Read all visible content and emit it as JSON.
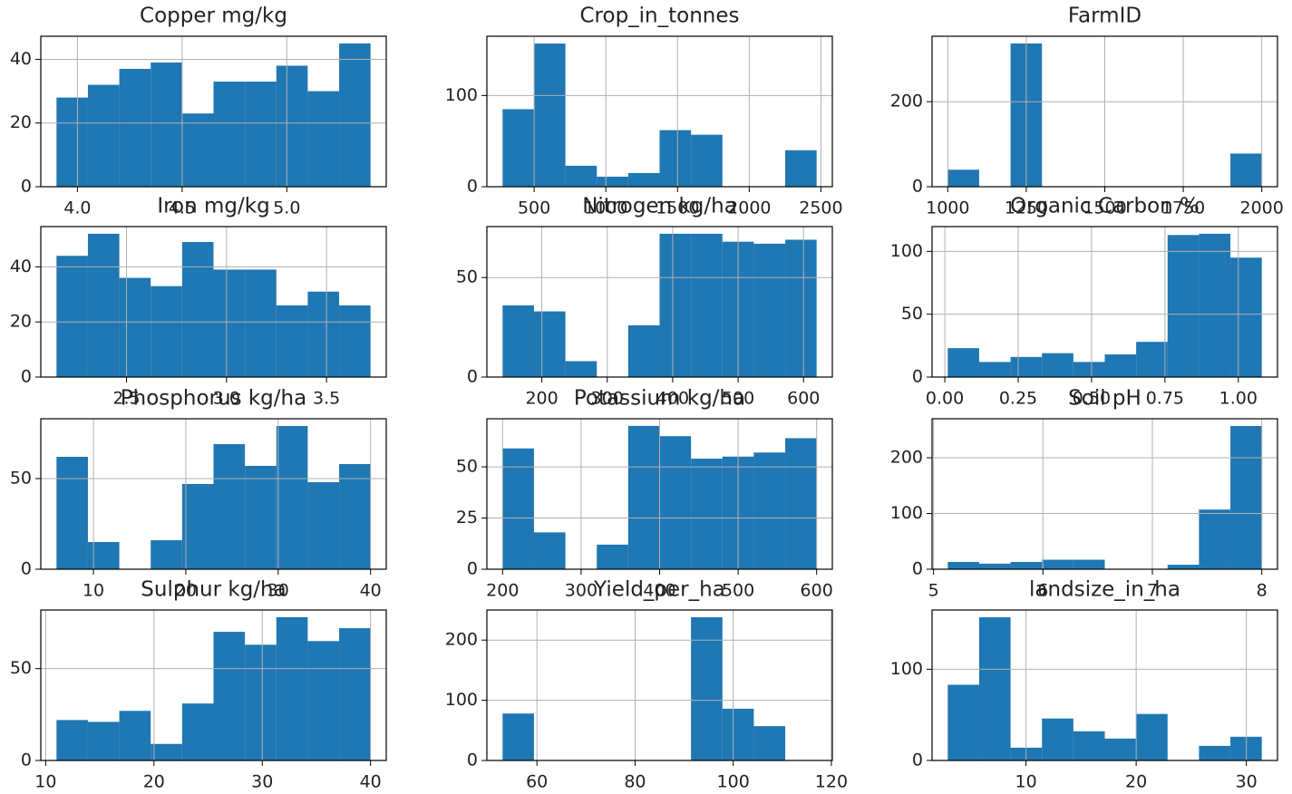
{
  "chart_data": [
    {
      "type": "histogram",
      "title": "Copper mg/kg",
      "bins": [
        3.9,
        4.05,
        4.2,
        4.35,
        4.5,
        4.65,
        4.8,
        4.95,
        5.1,
        5.25,
        5.4
      ],
      "counts": [
        28,
        32,
        37,
        39,
        23,
        33,
        33,
        38,
        30,
        45
      ],
      "color": "#1f77b4",
      "xlim": [
        3.825,
        5.475
      ],
      "ylim": [
        0,
        47.25
      ],
      "xticks": [
        {
          "value": 4,
          "label": "4.0"
        },
        4.5,
        {
          "value": 5,
          "label": "5.0"
        }
      ],
      "yticks": [
        0,
        20,
        40
      ],
      "grid": true
    },
    {
      "type": "histogram",
      "title": "Crop_in_tonnes",
      "bins": [
        280,
        499,
        718,
        937,
        1156,
        1375,
        1594,
        1813,
        2032,
        2251,
        2470
      ],
      "counts": [
        85,
        157,
        23,
        11,
        15,
        62,
        57,
        0,
        0,
        40
      ],
      "color": "#1f77b4",
      "xlim": [
        170.5,
        2579.5
      ],
      "ylim": [
        0,
        165
      ],
      "xticks": [
        500,
        1000,
        1500,
        2000,
        2500
      ],
      "yticks": [
        0,
        100
      ],
      "grid": true
    },
    {
      "type": "histogram",
      "title": "FarmID",
      "bins": [
        1000,
        1100,
        1200,
        1300,
        1400,
        1500,
        1600,
        1700,
        1800,
        1900,
        2000
      ],
      "counts": [
        40,
        0,
        337,
        0,
        0,
        0,
        0,
        0,
        0,
        78
      ],
      "color": "#1f77b4",
      "xlim": [
        950,
        2050
      ],
      "ylim": [
        0,
        354
      ],
      "xticks": [
        1000,
        1250,
        1500,
        1750,
        2000
      ],
      "yticks": [
        0,
        200
      ],
      "grid": true
    },
    {
      "type": "histogram",
      "title": "Iron mg/kg",
      "bins": [
        2.15,
        2.307,
        2.464,
        2.621,
        2.778,
        2.935,
        3.092,
        3.249,
        3.406,
        3.563,
        3.72
      ],
      "counts": [
        44,
        52,
        36,
        33,
        49,
        39,
        39,
        26,
        31,
        26
      ],
      "color": "#1f77b4",
      "xlim": [
        2.0715,
        3.7985
      ],
      "ylim": [
        0,
        54.6
      ],
      "xticks": [
        2.5,
        {
          "value": 3,
          "label": "3.0"
        },
        3.5
      ],
      "yticks": [
        0,
        20,
        40
      ],
      "grid": true
    },
    {
      "type": "histogram",
      "title": "Nitrogen kg/ha",
      "bins": [
        140,
        188,
        236,
        284,
        332,
        380,
        428,
        476,
        524,
        572,
        620
      ],
      "counts": [
        36,
        33,
        8,
        0,
        26,
        72,
        72,
        68,
        67,
        69
      ],
      "color": "#1f77b4",
      "xlim": [
        116,
        644
      ],
      "ylim": [
        0,
        75.6
      ],
      "xticks": [
        200,
        300,
        400,
        500,
        600
      ],
      "yticks": [
        0,
        50
      ],
      "grid": true
    },
    {
      "type": "histogram",
      "title": "Organic Carbon %",
      "bins": [
        0.01,
        0.117,
        0.224,
        0.331,
        0.438,
        0.545,
        0.652,
        0.759,
        0.866,
        0.973,
        1.08
      ],
      "counts": [
        23,
        12,
        16,
        19,
        12,
        18,
        28,
        113,
        114,
        95
      ],
      "color": "#1f77b4",
      "xlim": [
        -0.0435,
        1.1335
      ],
      "ylim": [
        0,
        119.7
      ],
      "xticks": [
        {
          "value": 0,
          "label": "0.00"
        },
        0.25,
        {
          "value": 0.5,
          "label": "0.50"
        },
        0.75,
        {
          "value": 1,
          "label": "1.00"
        }
      ],
      "yticks": [
        0,
        50,
        100
      ],
      "grid": true
    },
    {
      "type": "histogram",
      "title": "Phosphorus kg/ha",
      "bins": [
        6,
        9.4,
        12.8,
        16.2,
        19.6,
        23,
        26.4,
        29.8,
        33.2,
        36.6,
        40
      ],
      "counts": [
        62,
        15,
        0,
        16,
        47,
        69,
        57,
        79,
        48,
        58
      ],
      "color": "#1f77b4",
      "xlim": [
        4.3,
        41.7
      ],
      "ylim": [
        0,
        83
      ],
      "xticks": [
        10,
        20,
        30,
        40
      ],
      "yticks": [
        0,
        50
      ],
      "grid": true
    },
    {
      "type": "histogram",
      "title": "Potassium kg/ha",
      "bins": [
        200,
        240,
        280,
        320,
        360,
        400,
        440,
        480,
        520,
        560,
        600
      ],
      "counts": [
        59,
        18,
        0,
        12,
        70,
        65,
        54,
        55,
        57,
        64
      ],
      "color": "#1f77b4",
      "xlim": [
        180,
        620
      ],
      "ylim": [
        0,
        73.5
      ],
      "xticks": [
        200,
        300,
        400,
        500,
        600
      ],
      "yticks": [
        0,
        25,
        50
      ],
      "grid": true
    },
    {
      "type": "histogram",
      "title": "Soil pH",
      "bins": [
        5.13,
        5.417,
        5.704,
        5.991,
        6.278,
        6.565,
        6.852,
        7.139,
        7.426,
        7.713,
        8
      ],
      "counts": [
        13,
        10,
        13,
        17,
        17,
        0,
        0,
        8,
        107,
        257
      ],
      "color": "#1f77b4",
      "xlim": [
        4.9865,
        8.1435
      ],
      "ylim": [
        0,
        270
      ],
      "xticks": [
        5,
        6,
        7,
        8
      ],
      "yticks": [
        0,
        100,
        200
      ],
      "grid": true
    },
    {
      "type": "histogram",
      "title": "Sulphur kg/ha",
      "bins": [
        11,
        13.9,
        16.8,
        19.7,
        22.6,
        25.5,
        28.4,
        31.3,
        34.2,
        37.1,
        40
      ],
      "counts": [
        22,
        21,
        27,
        9,
        31,
        70,
        63,
        78,
        65,
        72
      ],
      "color": "#1f77b4",
      "xlim": [
        9.55,
        41.45
      ],
      "ylim": [
        0,
        81.9
      ],
      "xticks": [
        10,
        20,
        30,
        40
      ],
      "yticks": [
        0,
        50
      ],
      "grid": true
    },
    {
      "type": "histogram",
      "title": "Yield_per_ha",
      "bins": [
        53,
        59.4,
        65.8,
        72.2,
        78.6,
        85,
        91.4,
        97.8,
        104.2,
        110.6,
        117
      ],
      "counts": [
        78,
        0,
        0,
        0,
        0,
        0,
        238,
        86,
        57,
        0
      ],
      "color": "#1f77b4",
      "xlim": [
        49.8,
        120.2
      ],
      "ylim": [
        0,
        250
      ],
      "xticks": [
        60,
        80,
        100,
        120
      ],
      "yticks": [
        0,
        100,
        200
      ],
      "grid": true
    },
    {
      "type": "histogram",
      "title": "landsize_in_ha",
      "bins": [
        2.9,
        5.75,
        8.6,
        11.45,
        14.3,
        17.15,
        20,
        22.85,
        25.7,
        28.55,
        31.4
      ],
      "counts": [
        83,
        157,
        14,
        46,
        32,
        24,
        51,
        0,
        16,
        26
      ],
      "color": "#1f77b4",
      "xlim": [
        1.475,
        32.825
      ],
      "ylim": [
        0,
        165
      ],
      "xticks": [
        10,
        20,
        30
      ],
      "yticks": [
        0,
        100
      ],
      "grid": true
    }
  ]
}
